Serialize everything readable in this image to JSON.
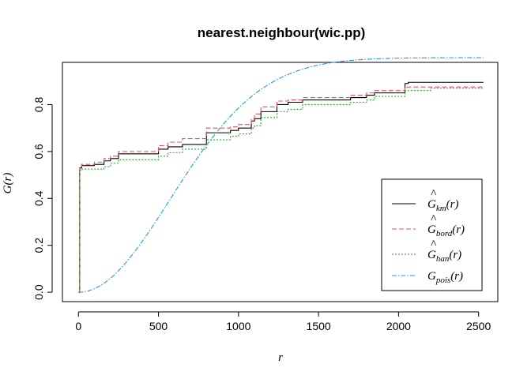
{
  "chart_data": {
    "type": "line",
    "title": "nearest.neighbour(wic.pp)",
    "xlabel": "r",
    "ylabel": "G(r)",
    "xlim": [
      -100,
      2620
    ],
    "ylim": [
      -0.04,
      0.98
    ],
    "xticks": [
      0,
      500,
      1000,
      1500,
      2000,
      2500
    ],
    "yticks": [
      0.0,
      0.2,
      0.4,
      0.6,
      0.8
    ],
    "ytick_labels": [
      "0.0",
      "0.2",
      "0.4",
      "0.6",
      "0.8"
    ],
    "xtick_labels": [
      "0",
      "500",
      "1000",
      "1500",
      "2000",
      "2500"
    ],
    "grid": false,
    "legend_position": "bottom-right",
    "series": [
      {
        "name": "Ĝkm(r)",
        "label_base": "G",
        "label_hat": true,
        "label_sub": "km",
        "color": "#000000",
        "dash": "",
        "step": true,
        "points": [
          [
            0,
            0
          ],
          [
            8,
            0.53
          ],
          [
            20,
            0.54
          ],
          [
            100,
            0.545
          ],
          [
            160,
            0.56
          ],
          [
            200,
            0.57
          ],
          [
            250,
            0.59
          ],
          [
            500,
            0.61
          ],
          [
            560,
            0.62
          ],
          [
            650,
            0.63
          ],
          [
            800,
            0.68
          ],
          [
            950,
            0.69
          ],
          [
            1000,
            0.7
          ],
          [
            1080,
            0.73
          ],
          [
            1100,
            0.74
          ],
          [
            1140,
            0.77
          ],
          [
            1240,
            0.8
          ],
          [
            1310,
            0.81
          ],
          [
            1400,
            0.82
          ],
          [
            1700,
            0.83
          ],
          [
            1800,
            0.84
          ],
          [
            1850,
            0.85
          ],
          [
            2040,
            0.89
          ],
          [
            2060,
            0.895
          ],
          [
            2530,
            0.895
          ]
        ]
      },
      {
        "name": "Ĝbord(r)",
        "label_base": "G",
        "label_hat": true,
        "label_sub": "bord",
        "color": "#DF536B",
        "dash": "6,3",
        "step": true,
        "points": [
          [
            0,
            0
          ],
          [
            8,
            0.535
          ],
          [
            20,
            0.545
          ],
          [
            100,
            0.555
          ],
          [
            160,
            0.57
          ],
          [
            200,
            0.58
          ],
          [
            250,
            0.6
          ],
          [
            500,
            0.625
          ],
          [
            560,
            0.64
          ],
          [
            650,
            0.655
          ],
          [
            800,
            0.7
          ],
          [
            950,
            0.705
          ],
          [
            1000,
            0.715
          ],
          [
            1080,
            0.74
          ],
          [
            1100,
            0.76
          ],
          [
            1140,
            0.79
          ],
          [
            1240,
            0.815
          ],
          [
            1310,
            0.82
          ],
          [
            1400,
            0.83
          ],
          [
            1700,
            0.84
          ],
          [
            1800,
            0.85
          ],
          [
            1850,
            0.86
          ],
          [
            2040,
            0.875
          ],
          [
            2530,
            0.875
          ]
        ]
      },
      {
        "name": "Ĝhan(r)",
        "label_base": "G",
        "label_hat": true,
        "label_sub": "han",
        "color": "#28A428",
        "dash": "2,2",
        "step": true,
        "points": [
          [
            0,
            0
          ],
          [
            8,
            0.52
          ],
          [
            20,
            0.525
          ],
          [
            160,
            0.535
          ],
          [
            200,
            0.55
          ],
          [
            250,
            0.565
          ],
          [
            500,
            0.58
          ],
          [
            560,
            0.595
          ],
          [
            650,
            0.61
          ],
          [
            800,
            0.65
          ],
          [
            950,
            0.665
          ],
          [
            1000,
            0.675
          ],
          [
            1080,
            0.7
          ],
          [
            1100,
            0.71
          ],
          [
            1140,
            0.745
          ],
          [
            1240,
            0.77
          ],
          [
            1310,
            0.78
          ],
          [
            1400,
            0.8
          ],
          [
            1700,
            0.81
          ],
          [
            1800,
            0.82
          ],
          [
            1850,
            0.835
          ],
          [
            2040,
            0.86
          ],
          [
            2200,
            0.87
          ],
          [
            2530,
            0.87
          ]
        ]
      },
      {
        "name": "Gpois(r)",
        "label_base": "G",
        "label_hat": false,
        "label_sub": "pois",
        "color": "#2297E6",
        "dash": "6,2,1.5,2",
        "step": false,
        "curve": {
          "type": "poisson",
          "lambda": 4.9e-07,
          "rmax": 2530
        }
      }
    ]
  }
}
